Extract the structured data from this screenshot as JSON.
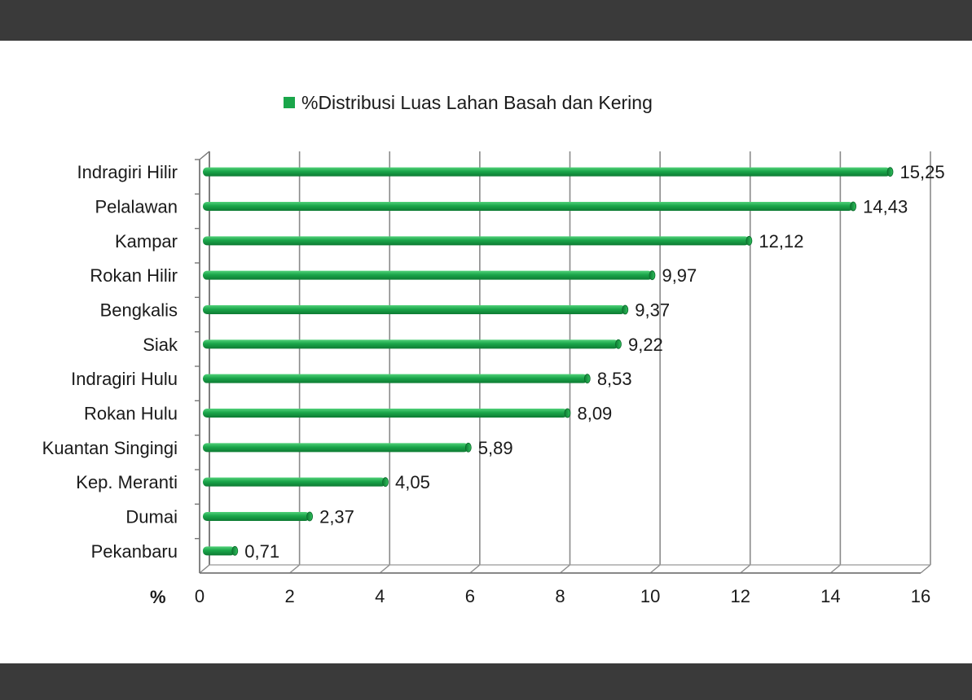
{
  "chart_data": {
    "type": "bar",
    "orientation": "horizontal",
    "categories": [
      "Indragiri Hilir",
      "Pelalawan",
      "Kampar",
      "Rokan Hilir",
      "Bengkalis",
      "Siak",
      "Indragiri Hulu",
      "Rokan Hulu",
      "Kuantan Singingi",
      "Kep. Meranti",
      "Dumai",
      "Pekanbaru"
    ],
    "values": [
      15.25,
      14.43,
      12.12,
      9.97,
      9.37,
      9.22,
      8.53,
      8.09,
      5.89,
      4.05,
      2.37,
      0.71
    ],
    "value_labels": [
      "15,25",
      "14,43",
      "12,12",
      "9,97",
      "9,37",
      "9,22",
      "8,53",
      "8,09",
      "5,89",
      "4,05",
      "2,37",
      "0,71"
    ],
    "series": [
      {
        "name": "%Distribusi Luas Lahan Basah dan Kering"
      }
    ],
    "xlim": [
      0,
      16
    ],
    "xticks": [
      0,
      2,
      4,
      6,
      8,
      10,
      12,
      14,
      16
    ],
    "xlabel": "%",
    "grid": true,
    "legend_position": "top-center",
    "bar_color": "#1aa64a"
  }
}
